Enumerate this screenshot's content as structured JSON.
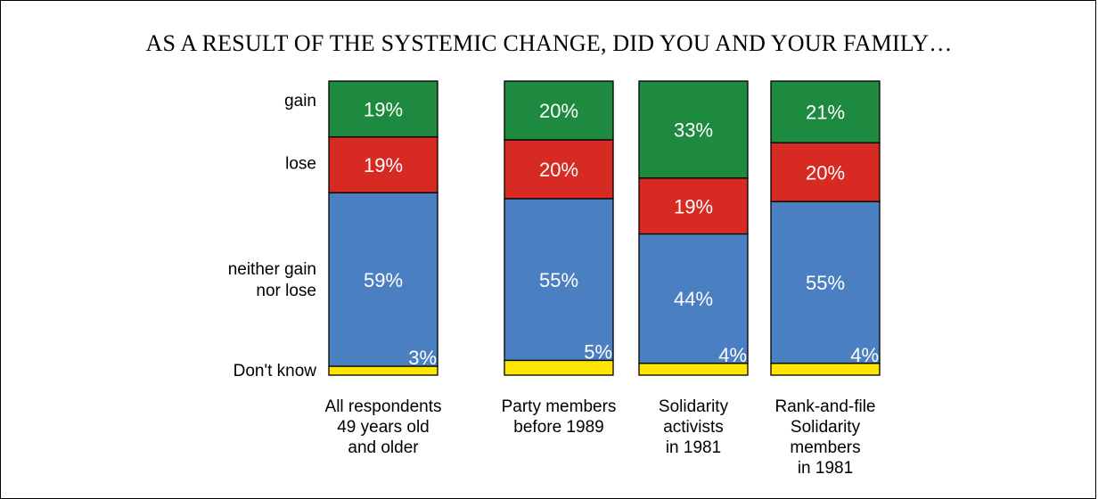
{
  "title": "AS A RESULT OF THE SYSTEMIC CHANGE, DID YOU AND YOUR FAMILY…",
  "chart_data": {
    "type": "bar",
    "stacked": true,
    "orientation": "vertical",
    "title": "AS A RESULT OF THE SYSTEMIC CHANGE, DID YOU AND YOUR FAMILY…",
    "categories": [
      {
        "lines": [
          "All respondents",
          "49 years old",
          "and older"
        ]
      },
      {
        "lines": [
          "Party members",
          "before 1989"
        ]
      },
      {
        "lines": [
          "Solidarity",
          "activists",
          "in 1981"
        ]
      },
      {
        "lines": [
          "Rank-and-file",
          "Solidarity",
          "members",
          "in 1981"
        ]
      }
    ],
    "row_labels": [
      {
        "key": "gain",
        "lines": [
          "gain"
        ]
      },
      {
        "key": "lose",
        "lines": [
          "lose"
        ]
      },
      {
        "key": "neither",
        "lines": [
          "neither gain",
          "nor lose"
        ]
      },
      {
        "key": "dont_know",
        "lines": [
          "Don't know"
        ]
      }
    ],
    "series": [
      {
        "name": "gain",
        "color": "#1e8a3f",
        "values": [
          19,
          20,
          33,
          21
        ],
        "labels": [
          "19%",
          "20%",
          "33%",
          "21%"
        ]
      },
      {
        "name": "lose",
        "color": "#d62a22",
        "values": [
          19,
          20,
          19,
          20
        ],
        "labels": [
          "19%",
          "20%",
          "19%",
          "20%"
        ]
      },
      {
        "name": "neither gain nor lose",
        "color": "#4a7fc1",
        "values": [
          59,
          55,
          44,
          55
        ],
        "labels": [
          "59%",
          "55%",
          "44%",
          "55%"
        ]
      },
      {
        "name": "Don't know",
        "color": "#ffe600",
        "values": [
          3,
          5,
          4,
          4
        ],
        "labels": [
          "3%",
          "5%",
          "4%",
          "4%"
        ]
      }
    ],
    "ylim": [
      0,
      100
    ],
    "grid": false,
    "legend": "left row labels"
  }
}
